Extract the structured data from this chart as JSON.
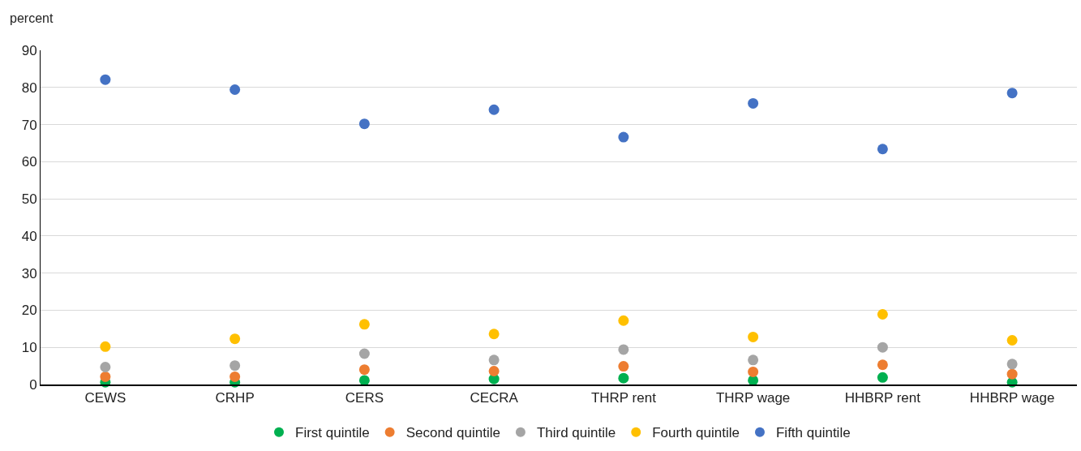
{
  "chart_data": {
    "type": "scatter",
    "ylabel": "percent",
    "categories": [
      "CEWS",
      "CRHP",
      "CERS",
      "CECRA",
      "THRP rent",
      "THRP wage",
      "HHBRP rent",
      "HHBRP wage"
    ],
    "series": [
      {
        "name": "First quintile",
        "color": "#00b050",
        "values": [
          0.6,
          0.6,
          1.1,
          1.5,
          1.7,
          1.1,
          1.9,
          0.6
        ]
      },
      {
        "name": "Second quintile",
        "color": "#ed7d31",
        "values": [
          2.1,
          2.1,
          4.0,
          3.6,
          4.9,
          3.4,
          5.3,
          2.8
        ]
      },
      {
        "name": "Third quintile",
        "color": "#a5a5a5",
        "values": [
          4.7,
          5.1,
          8.3,
          6.6,
          9.4,
          6.6,
          10.0,
          5.5
        ]
      },
      {
        "name": "Fourth quintile",
        "color": "#ffc000",
        "values": [
          10.2,
          12.3,
          16.2,
          13.6,
          17.2,
          12.8,
          18.9,
          11.9
        ]
      },
      {
        "name": "Fifth quintile",
        "color": "#4472c4",
        "values": [
          82.1,
          79.4,
          70.2,
          74.0,
          66.6,
          75.7,
          63.4,
          78.5
        ]
      }
    ],
    "ylim": [
      0,
      90
    ],
    "yticks": [
      0,
      10,
      20,
      30,
      40,
      50,
      60,
      70,
      80,
      90
    ],
    "grid": "y",
    "legend": "bottom",
    "marker": "circle"
  }
}
